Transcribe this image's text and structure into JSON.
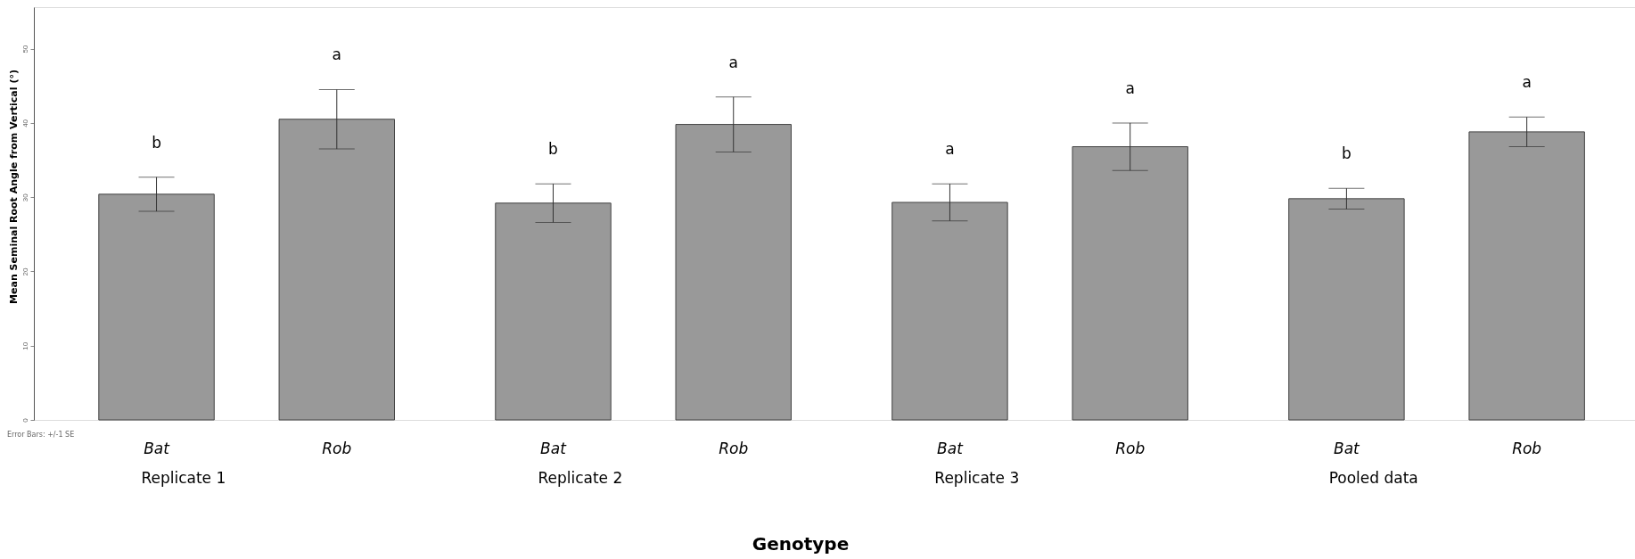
{
  "chart_data": {
    "type": "bar",
    "xlabel": "Genotype",
    "ylabel": "Mean Seminal Root Angle from Vertical (°)",
    "categories": [
      "Bat",
      "Rob",
      "Bat",
      "Rob",
      "Bat",
      "Rob",
      "Bat",
      "Rob"
    ],
    "values": [
      30.4,
      40.5,
      29.2,
      39.8,
      29.3,
      36.8,
      29.8,
      38.8
    ],
    "errors": [
      2.3,
      4.0,
      2.6,
      3.7,
      2.5,
      3.2,
      1.4,
      2.0
    ],
    "color": "#999999",
    "ylim": [
      0,
      55.6
    ],
    "yticks": [
      0,
      10,
      20,
      30,
      40,
      50
    ],
    "annotations": [
      "b",
      "a",
      "b",
      "a",
      "a",
      "a",
      "b",
      "a",
      "Replicate 1",
      "Replicate 2",
      "Replicate 3",
      "Pooled data",
      "Error Bars: +/-1 SE"
    ]
  }
}
